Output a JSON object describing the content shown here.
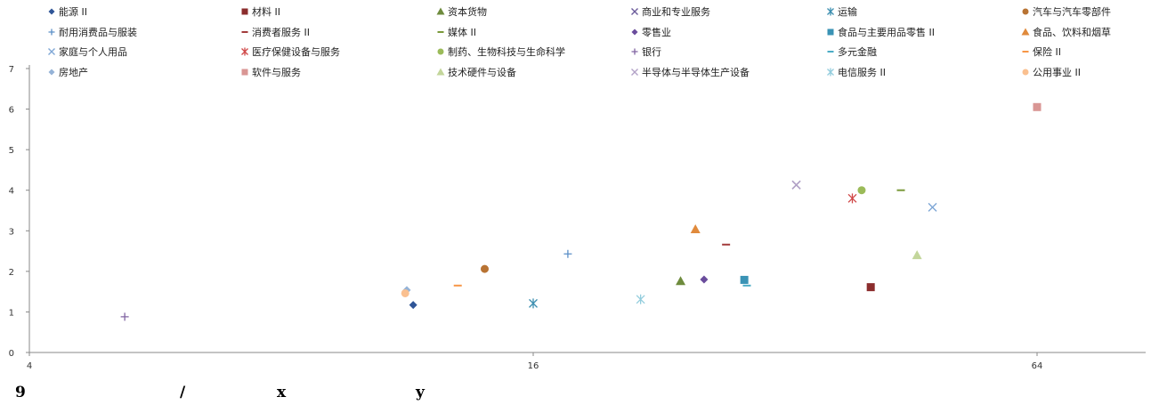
{
  "chart_data": {
    "type": "scatter",
    "x_scale": "log2",
    "xlim": [
      4,
      100
    ],
    "ylim": [
      0,
      7
    ],
    "x_ticks": [
      4,
      16,
      64
    ],
    "y_ticks": [
      0,
      1,
      2,
      3,
      4,
      5,
      6,
      7
    ],
    "grid": false,
    "legend_position": "top",
    "caption": {
      "parts": [
        {
          "text": "9"
        },
        {
          "text": "/"
        },
        {
          "text": "x"
        },
        {
          "text": "y"
        }
      ]
    },
    "series": [
      {
        "name": "能源 II",
        "marker": "diamond",
        "color": "#2F5597",
        "x": 11.5,
        "y": 1.17
      },
      {
        "name": "材料 II",
        "marker": "square",
        "color": "#8B2D2D",
        "x": 40.5,
        "y": 1.61
      },
      {
        "name": "资本货物",
        "marker": "triangle",
        "color": "#6E8B3D",
        "x": 24.0,
        "y": 1.76
      },
      {
        "name": "商业和专业服务",
        "marker": "x",
        "color": "#6A5A9A",
        "x": 33.0,
        "y": 4.13
      },
      {
        "name": "运输",
        "marker": "star",
        "color": "#3D8FB0",
        "x": 16.0,
        "y": 1.21
      },
      {
        "name": "汽车与汽车零部件",
        "marker": "circle",
        "color": "#B87333",
        "x": 14.0,
        "y": 2.06
      },
      {
        "name": "耐用消费品与服装",
        "marker": "plus",
        "color": "#5B8FC7",
        "x": 17.6,
        "y": 2.43
      },
      {
        "name": "消费者服务 II",
        "marker": "dash",
        "color": "#A33B3B",
        "x": 27.2,
        "y": 2.66
      },
      {
        "name": "媒体 II",
        "marker": "dash",
        "color": "#7A9A3A",
        "x": 44.0,
        "y": 4.0
      },
      {
        "name": "零售业",
        "marker": "diamond",
        "color": "#6A4C9C",
        "x": 25.6,
        "y": 1.8
      },
      {
        "name": "食品与主要用品零售 II",
        "marker": "square",
        "color": "#3A93B5",
        "x": 28.6,
        "y": 1.79
      },
      {
        "name": "食品、饮料和烟草",
        "marker": "triangle",
        "color": "#E08A3C",
        "x": 25.0,
        "y": 3.04
      },
      {
        "name": "家庭与个人用品",
        "marker": "x",
        "color": "#7FA7D6",
        "x": 48.0,
        "y": 3.58
      },
      {
        "name": "医疗保健设备与服务",
        "marker": "star",
        "color": "#D04848",
        "x": 38.5,
        "y": 3.8
      },
      {
        "name": "制药、生物科技与生命科学",
        "marker": "circle",
        "color": "#9BBB59",
        "x": 39.5,
        "y": 4.0
      },
      {
        "name": "银行",
        "marker": "plus",
        "color": "#8064A2",
        "x": 5.2,
        "y": 0.88
      },
      {
        "name": "多元金融",
        "marker": "dash",
        "color": "#4BACC6",
        "x": 28.8,
        "y": 1.65
      },
      {
        "name": "保险 II",
        "marker": "dash",
        "color": "#F79646",
        "x": 13.0,
        "y": 1.65
      },
      {
        "name": "房地产",
        "marker": "diamond",
        "color": "#95B3D7",
        "x": 11.3,
        "y": 1.54
      },
      {
        "name": "软件与服务",
        "marker": "square",
        "color": "#D99694",
        "x": 64.0,
        "y": 6.05
      },
      {
        "name": "技术硬件与设备",
        "marker": "triangle",
        "color": "#C3D69B",
        "x": 46.0,
        "y": 2.4
      },
      {
        "name": "半导体与半导体生产设备",
        "marker": "x",
        "color": "#B3A2C7",
        "x": 33.0,
        "y": 4.13
      },
      {
        "name": "电信服务 II",
        "marker": "star",
        "color": "#93CDDD",
        "x": 21.5,
        "y": 1.31
      },
      {
        "name": "公用事业 II",
        "marker": "circle",
        "color": "#FAC090",
        "x": 11.25,
        "y": 1.46
      }
    ]
  }
}
